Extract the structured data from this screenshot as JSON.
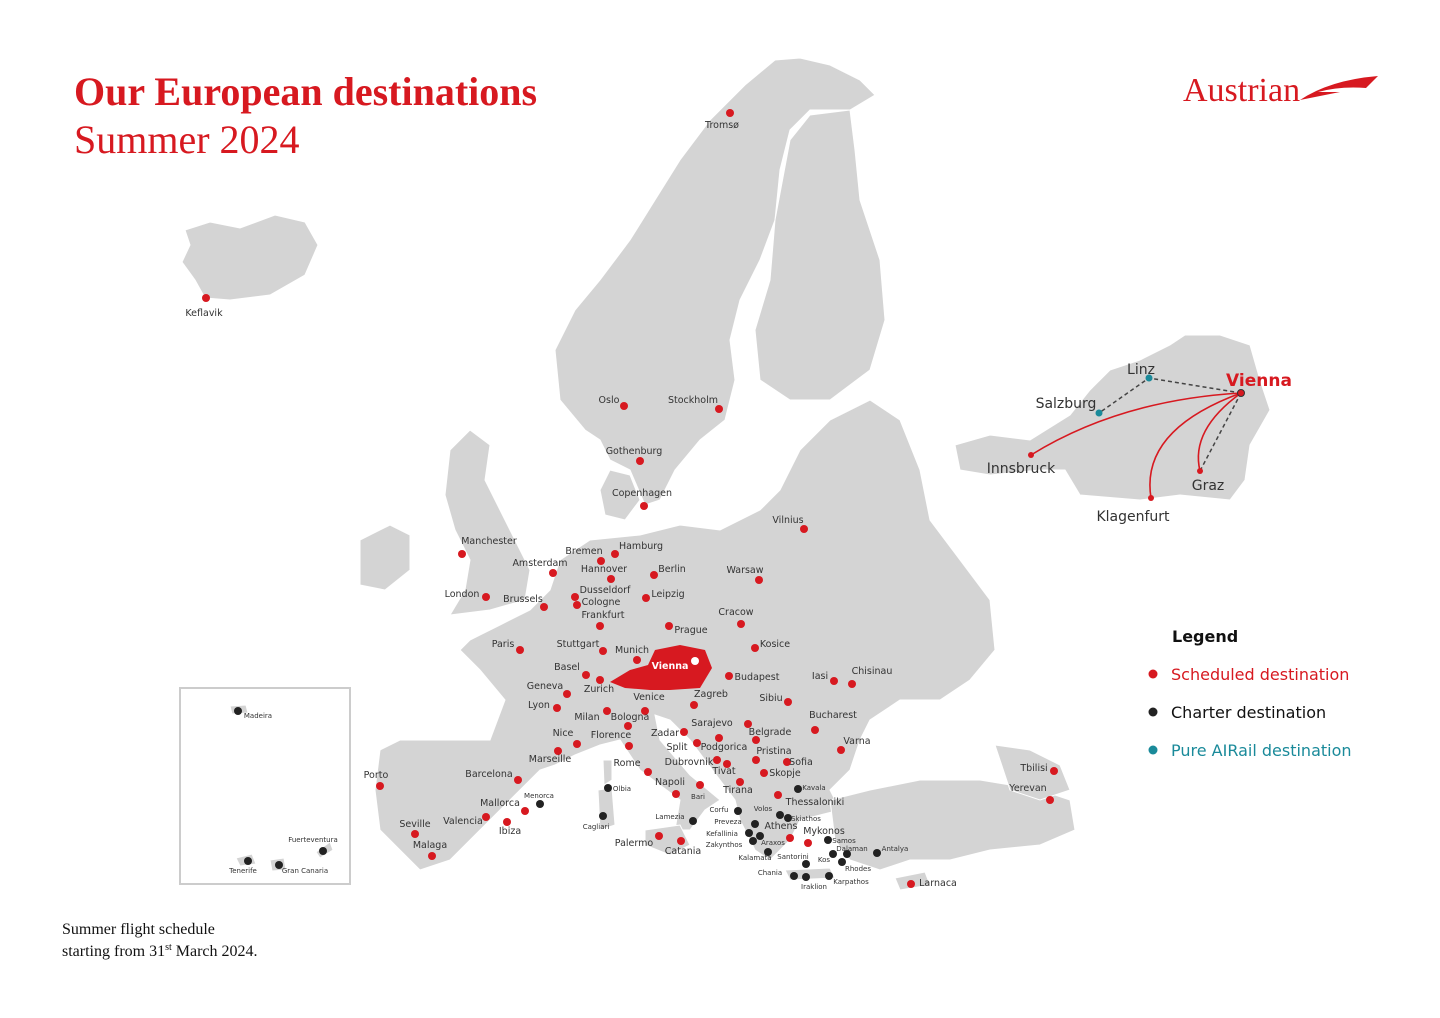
{
  "header": {
    "title": "Our European destinations",
    "subtitle": "Summer 2024",
    "logo": "Austrian"
  },
  "map": {
    "hub": "Vienna",
    "scheduled_destinations": [
      "Keflavik",
      "Tromsø",
      "Oslo",
      "Stockholm",
      "Gothenburg",
      "Copenhagen",
      "Vilnius",
      "Manchester",
      "Amsterdam",
      "Bremen",
      "Hamburg",
      "Hannover",
      "Berlin",
      "Warsaw",
      "London",
      "Brussels",
      "Dusseldorf",
      "Cologne",
      "Leipzig",
      "Frankfurt",
      "Cracow",
      "Prague",
      "Paris",
      "Stuttgart",
      "Munich",
      "Kosice",
      "Basel",
      "Zurich",
      "Budapest",
      "Iasi",
      "Chisinau",
      "Geneva",
      "Sibiu",
      "Venice",
      "Zagreb",
      "Lyon",
      "Milan",
      "Bologna",
      "Bucharest",
      "Sarajevo",
      "Belgrade",
      "Nice",
      "Florence",
      "Zadar",
      "Split",
      "Podgorica",
      "Varna",
      "Marseille",
      "Dubrovnik",
      "Pristina",
      "Sofia",
      "Tivat",
      "Rome",
      "Skopje",
      "Porto",
      "Barcelona",
      "Napoli",
      "Bari",
      "Tirana",
      "Thessaloniki",
      "Tbilisi",
      "Yerevan",
      "Mallorca",
      "Valencia",
      "Ibiza",
      "Seville",
      "Malaga",
      "Athens",
      "Mykonos",
      "Palermo",
      "Catania",
      "Larnaca"
    ],
    "charter_destinations": [
      "Madeira",
      "Tenerife",
      "Gran Canaria",
      "Fuerteventura",
      "Menorca",
      "Olbia",
      "Cagliari",
      "Lamezia",
      "Corfu",
      "Preveza",
      "Kefallinia",
      "Zakynthos",
      "Araxos",
      "Volos",
      "Skiathos",
      "Kavala",
      "Kalamata",
      "Santorini",
      "Chania",
      "Iraklion",
      "Karpathos",
      "Samos",
      "Dalaman",
      "Kos",
      "Rhodes",
      "Antalya"
    ]
  },
  "austria_inset": {
    "hub": "Vienna",
    "airrail_destinations": [
      "Linz",
      "Salzburg"
    ],
    "scheduled_destinations": [
      "Innsbruck",
      "Graz",
      "Klagenfurt"
    ]
  },
  "legend": {
    "title": "Legend",
    "items": [
      {
        "label": "Scheduled destination",
        "color": "#d71920"
      },
      {
        "label": "Charter destination",
        "color": "#222222"
      },
      {
        "label": "Pure AIRail destination",
        "color": "#1a8a9a"
      }
    ]
  },
  "footer": {
    "line1": "Summer flight schedule",
    "line2_start": "starting from 31",
    "line2_sup": "st",
    "line2_end": " March 2024."
  }
}
